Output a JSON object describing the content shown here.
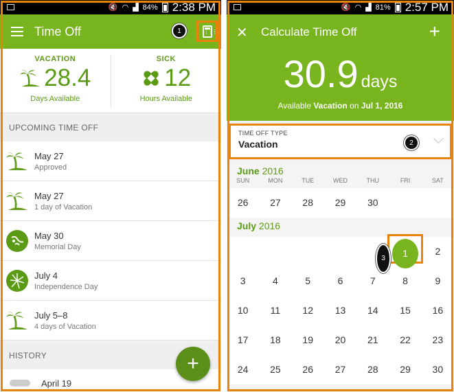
{
  "status_left": {
    "battery": "84%",
    "time": "2:38 PM"
  },
  "status_right": {
    "battery": "81%",
    "time": "2:57 PM"
  },
  "left": {
    "title": "Time Off",
    "callout": "1",
    "vacation": {
      "label": "VACATION",
      "value": "28.4",
      "caption": "Days Available"
    },
    "sick": {
      "label": "SICK",
      "value": "12",
      "caption": "Hours Available"
    },
    "upcoming_header": "UPCOMING TIME OFF",
    "items": [
      {
        "date": "May 27",
        "desc": "Approved",
        "icon": "palm-tree-icon"
      },
      {
        "date": "May 27",
        "desc": "1 day of Vacation",
        "icon": "palm-tree-icon"
      },
      {
        "date": "May 30",
        "desc": "Memorial Day",
        "icon": "holiday-badge-icon"
      },
      {
        "date": "July 4",
        "desc": "Independence Day",
        "icon": "fireworks-icon"
      },
      {
        "date": "July 5–8",
        "desc": "4 days of Vacation",
        "icon": "palm-tree-icon"
      }
    ],
    "history_header": "HISTORY",
    "history_item": "April 19",
    "fab": "+"
  },
  "right": {
    "title": "Calculate Time Off",
    "close": "✕",
    "add": "+",
    "days_value": "30.9",
    "days_unit": "days",
    "avail_prefix": "Available",
    "avail_type": "Vacation",
    "avail_mid": "on",
    "avail_date": "Jul 1, 2016",
    "type_label": "TIME OFF TYPE",
    "type_value": "Vacation",
    "callout2": "2",
    "callout3": "3",
    "june_month": "June",
    "june_year": "2016",
    "july_month": "July",
    "july_year": "2016",
    "dow": [
      "SUN",
      "MON",
      "TUE",
      "WED",
      "THU",
      "FRI",
      "SAT"
    ],
    "june_days": [
      "26",
      "27",
      "28",
      "29",
      "30",
      "",
      ""
    ],
    "july_rows": [
      [
        "",
        "",
        "",
        "",
        "",
        "1",
        "2"
      ],
      [
        "3",
        "4",
        "5",
        "6",
        "7",
        "8",
        "9"
      ],
      [
        "10",
        "11",
        "12",
        "13",
        "14",
        "15",
        "16"
      ],
      [
        "17",
        "18",
        "19",
        "20",
        "21",
        "22",
        "23"
      ],
      [
        "24",
        "25",
        "26",
        "27",
        "28",
        "29",
        "30"
      ]
    ],
    "selected_day": "1"
  },
  "colors": {
    "brand_green": "#78b41d",
    "dark_green": "#5b9a15",
    "highlight": "#e8830e"
  }
}
